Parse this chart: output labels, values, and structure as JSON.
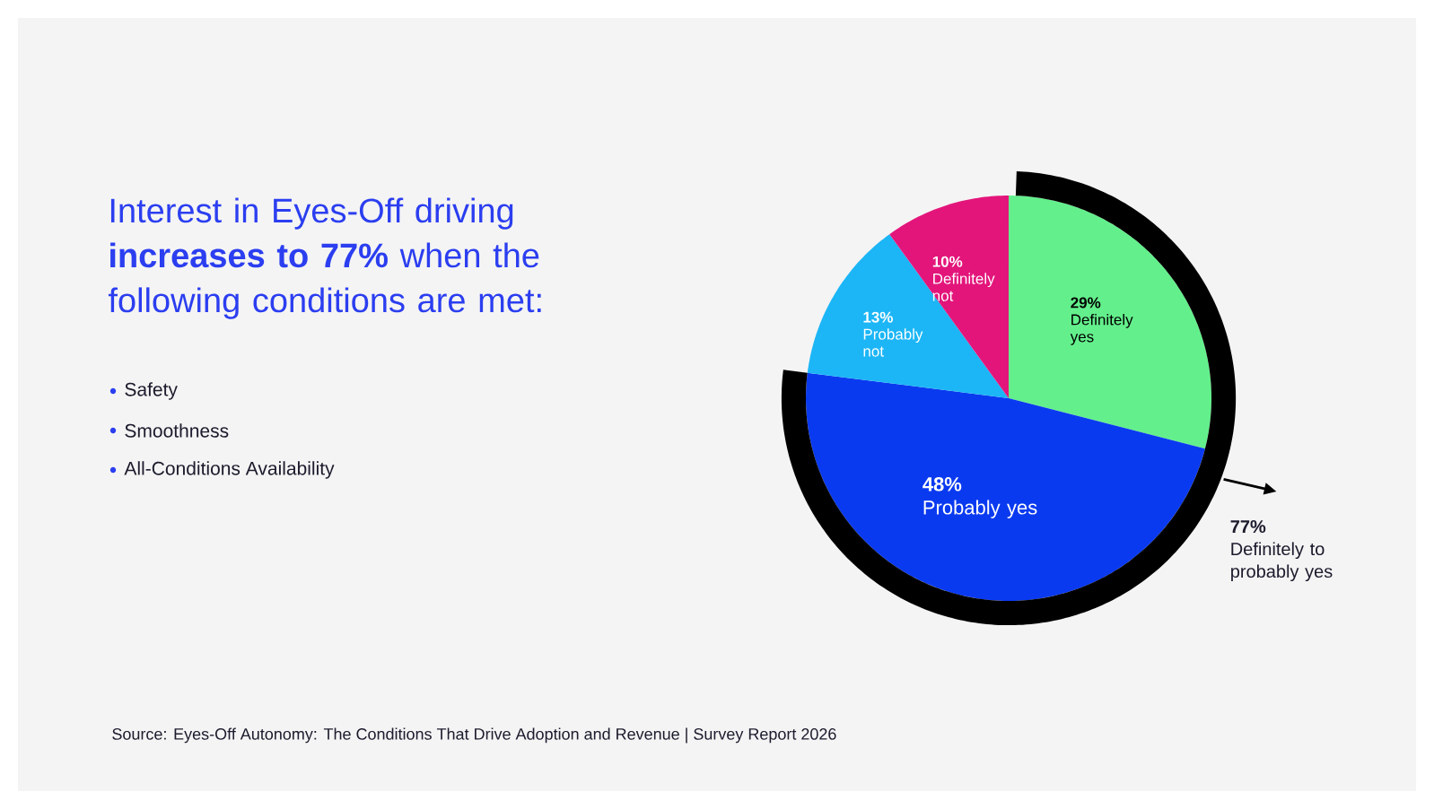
{
  "chart_data": {
    "type": "pie",
    "title": "Interest in Eyes-Off driving **increases to 77%** when the following conditions are met:",
    "categories": [
      "Definitely yes",
      "Probably yes",
      "Probably not",
      "Definitely not"
    ],
    "values": [
      29,
      48,
      13,
      10
    ],
    "value_labels": [
      "29%",
      "48%",
      "13%",
      "10%"
    ],
    "colors": [
      "#63f08c",
      "#0a3af0",
      "#1cb6f6",
      "#e3157b"
    ],
    "annotations": [
      "Safety",
      "Smoothness",
      "All-Conditions Availability",
      "**77%** Definitely to probably yes",
      "Source: Eyes-Off Autonomy: The Conditions That Drive Adoption and Revenue | Survey Report 2026"
    ]
  }
}
